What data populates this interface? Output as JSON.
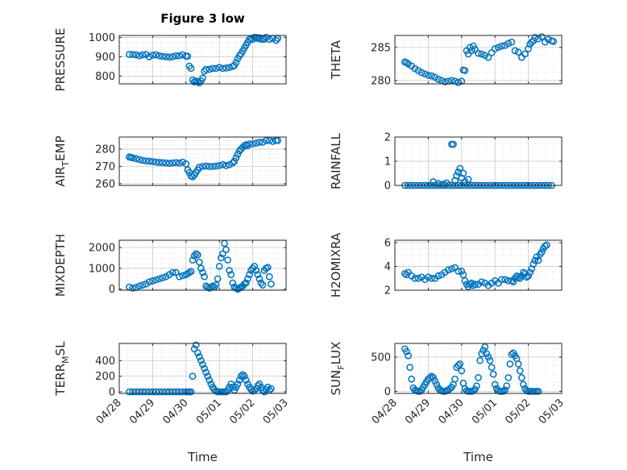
{
  "figure": {
    "title": "Figure 3 low",
    "xlabel_left": "Time",
    "xlabel_right": "Time",
    "x_tick_labels": [
      "04/28",
      "04/29",
      "04/30",
      "05/01",
      "05/02",
      "05/03"
    ]
  },
  "colors": {
    "marker": "#0072BD",
    "grid": "#d8d8d8",
    "axis": "#262626"
  },
  "chart_data": [
    {
      "type": "scatter",
      "name": "pressure",
      "ylabel": "PRESSURE",
      "ylim": [
        760,
        1010
      ],
      "yticks": [
        800,
        900,
        1000
      ],
      "xlim": [
        0,
        5
      ],
      "x_unit": "days from 04/28",
      "x": [
        0.3,
        0.4,
        0.5,
        0.6,
        0.7,
        0.8,
        0.9,
        1.0,
        1.1,
        1.2,
        1.3,
        1.4,
        1.5,
        1.6,
        1.7,
        1.8,
        1.9,
        2.0,
        2.05,
        2.1,
        2.15,
        2.2,
        2.25,
        2.3,
        2.35,
        2.4,
        2.45,
        2.5,
        2.55,
        2.6,
        2.7,
        2.8,
        2.9,
        3.0,
        3.1,
        3.2,
        3.3,
        3.4,
        3.45,
        3.5,
        3.55,
        3.6,
        3.65,
        3.7,
        3.75,
        3.8,
        3.85,
        3.9,
        3.95,
        4.0,
        4.05,
        4.1,
        4.15,
        4.2,
        4.25,
        4.3,
        4.35,
        4.4,
        4.5,
        4.6,
        4.7,
        4.75
      ],
      "y": [
        912,
        912,
        910,
        905,
        910,
        912,
        900,
        908,
        910,
        905,
        902,
        900,
        898,
        900,
        905,
        905,
        910,
        903,
        903,
        852,
        840,
        780,
        770,
        775,
        770,
        765,
        775,
        790,
        825,
        835,
        835,
        840,
        840,
        845,
        840,
        842,
        845,
        850,
        855,
        870,
        890,
        905,
        915,
        930,
        945,
        960,
        975,
        990,
        995,
        990,
        1000,
        1000,
        995,
        998,
        990,
        995,
        990,
        1000,
        990,
        995,
        985,
        995
      ]
    },
    {
      "type": "scatter",
      "name": "theta",
      "ylabel": "THETA",
      "ylim": [
        279.5,
        286.8
      ],
      "yticks": [
        280,
        285
      ],
      "xlim": [
        0,
        5
      ],
      "x_unit": "days from 04/28",
      "x": [
        0.3,
        0.35,
        0.4,
        0.5,
        0.6,
        0.7,
        0.8,
        0.9,
        1.0,
        1.1,
        1.2,
        1.3,
        1.4,
        1.5,
        1.6,
        1.7,
        1.8,
        1.9,
        2.0,
        2.05,
        2.1,
        2.15,
        2.2,
        2.25,
        2.3,
        2.35,
        2.4,
        2.5,
        2.6,
        2.7,
        2.8,
        2.9,
        3.0,
        3.1,
        3.2,
        3.3,
        3.4,
        3.5,
        3.6,
        3.7,
        3.8,
        3.9,
        4.0,
        4.05,
        4.1,
        4.15,
        4.2,
        4.3,
        4.4,
        4.5,
        4.6,
        4.7,
        4.75
      ],
      "y": [
        282.8,
        282.7,
        282.5,
        282.2,
        281.8,
        281.5,
        281.2,
        281.0,
        280.8,
        280.7,
        280.5,
        280.2,
        280.0,
        279.8,
        279.9,
        280.0,
        279.9,
        279.7,
        279.9,
        281.6,
        281.5,
        284.5,
        284.0,
        285.0,
        284.5,
        285.2,
        284.7,
        284.1,
        284.0,
        283.8,
        283.5,
        284.2,
        284.8,
        285.0,
        285.2,
        285.3,
        285.6,
        285.8,
        284.5,
        284.3,
        283.5,
        284.0,
        284.8,
        285.5,
        285.8,
        286.0,
        286.5,
        286.3,
        286.6,
        285.8,
        286.2,
        286.0,
        285.9
      ]
    },
    {
      "type": "scatter",
      "name": "air_temp",
      "ylabel": "AIR",
      "ylabel_sub": "T",
      "ylabel_tail": "EMP",
      "ylim": [
        259,
        287
      ],
      "yticks": [
        260,
        270,
        280
      ],
      "xlim": [
        0,
        5
      ],
      "x_unit": "days from 04/28",
      "x": [
        0.3,
        0.35,
        0.4,
        0.5,
        0.6,
        0.7,
        0.8,
        0.9,
        1.0,
        1.1,
        1.2,
        1.3,
        1.4,
        1.5,
        1.6,
        1.7,
        1.8,
        1.9,
        2.0,
        2.05,
        2.1,
        2.15,
        2.2,
        2.25,
        2.3,
        2.35,
        2.4,
        2.5,
        2.6,
        2.7,
        2.8,
        2.9,
        3.0,
        3.1,
        3.2,
        3.3,
        3.4,
        3.45,
        3.5,
        3.55,
        3.6,
        3.65,
        3.7,
        3.75,
        3.8,
        3.85,
        3.9,
        4.0,
        4.1,
        4.2,
        4.3,
        4.4,
        4.5,
        4.6,
        4.7,
        4.75
      ],
      "y": [
        275.5,
        275.2,
        275,
        274.5,
        274,
        273.5,
        273.2,
        273,
        272.8,
        272.5,
        272.3,
        272.2,
        272,
        271.8,
        272,
        272.2,
        272,
        272.5,
        271.5,
        268,
        266.5,
        264.5,
        264,
        265,
        266.5,
        268,
        269.5,
        270,
        270.2,
        270,
        270,
        270.2,
        270.5,
        271,
        270.5,
        271,
        272,
        273,
        275,
        277,
        279,
        280,
        281,
        282,
        282.5,
        282,
        283,
        283,
        283.5,
        284,
        284,
        285,
        285,
        284.5,
        285,
        285
      ]
    },
    {
      "type": "scatter",
      "name": "rainfall",
      "ylabel": "RAINFALL",
      "ylim": [
        0,
        2
      ],
      "yticks": [
        0,
        1,
        2
      ],
      "xlim": [
        0,
        5
      ],
      "x_unit": "days from 04/28",
      "x": [
        0.3,
        0.4,
        0.5,
        0.6,
        0.7,
        0.8,
        0.9,
        1.0,
        1.1,
        1.2,
        1.3,
        1.4,
        1.5,
        1.6,
        1.7,
        1.8,
        1.9,
        2.0,
        2.1,
        2.2,
        2.3,
        2.4,
        2.5,
        2.6,
        2.7,
        2.8,
        2.9,
        3.0,
        3.1,
        3.2,
        3.3,
        3.4,
        3.5,
        3.6,
        3.7,
        3.8,
        3.9,
        4.0,
        4.1,
        4.2,
        4.3,
        4.4,
        4.5,
        4.6,
        4.7,
        1.15,
        1.3,
        1.45,
        1.55,
        1.7,
        1.75,
        1.8,
        1.85,
        1.9,
        1.95,
        2.0,
        2.05,
        2.1,
        2.2
      ],
      "y": [
        0,
        0,
        0,
        0,
        0,
        0,
        0,
        0,
        0,
        0,
        0,
        0,
        0,
        0,
        0,
        0,
        0,
        0,
        0,
        0,
        0,
        0,
        0,
        0,
        0,
        0,
        0,
        0,
        0,
        0,
        0,
        0,
        0,
        0,
        0,
        0,
        0,
        0,
        0,
        0,
        0,
        0,
        0,
        0,
        0,
        0.15,
        0.08,
        0.05,
        0.1,
        1.7,
        1.7,
        0.2,
        0.4,
        0.55,
        0.7,
        0.3,
        0.5,
        0.15,
        0.25
      ]
    },
    {
      "type": "scatter",
      "name": "mixdepth",
      "ylabel": "MIXDEPTH",
      "ylim": [
        -50,
        2350
      ],
      "yticks": [
        0,
        1000,
        2000
      ],
      "xlim": [
        0,
        5
      ],
      "x_unit": "days from 04/28",
      "x": [
        0.3,
        0.4,
        0.5,
        0.6,
        0.7,
        0.8,
        0.9,
        1.0,
        1.1,
        1.2,
        1.3,
        1.4,
        1.5,
        1.6,
        1.7,
        1.8,
        1.9,
        2.0,
        2.05,
        2.1,
        2.15,
        2.2,
        2.25,
        2.3,
        2.35,
        2.4,
        2.45,
        2.5,
        2.55,
        2.6,
        2.65,
        2.7,
        2.75,
        2.8,
        2.85,
        2.9,
        2.95,
        3.0,
        3.05,
        3.1,
        3.15,
        3.2,
        3.25,
        3.3,
        3.35,
        3.4,
        3.45,
        3.5,
        3.55,
        3.6,
        3.65,
        3.7,
        3.75,
        3.8,
        3.85,
        3.9,
        3.95,
        4.0,
        4.05,
        4.1,
        4.15,
        4.2,
        4.25,
        4.3,
        4.35,
        4.4,
        4.45,
        4.5,
        4.55
      ],
      "y": [
        100,
        50,
        80,
        150,
        200,
        250,
        350,
        400,
        450,
        500,
        550,
        600,
        700,
        800,
        800,
        600,
        650,
        700,
        750,
        800,
        850,
        1400,
        1600,
        1700,
        1650,
        1300,
        1000,
        800,
        600,
        150,
        100,
        50,
        100,
        150,
        100,
        200,
        500,
        1100,
        1500,
        1700,
        2200,
        1900,
        1400,
        900,
        700,
        300,
        100,
        50,
        0,
        50,
        100,
        150,
        250,
        300,
        500,
        700,
        900,
        1000,
        1100,
        900,
        700,
        500,
        300,
        200,
        900,
        1000,
        1050,
        600,
        250
      ]
    },
    {
      "type": "scatter",
      "name": "h2o_mixing_ratio",
      "ylabel": "H2OMIXRA",
      "ylim": [
        2,
        6.2
      ],
      "yticks": [
        2,
        4,
        6
      ],
      "xlim": [
        0,
        5
      ],
      "x_unit": "days from 04/28",
      "x": [
        0.3,
        0.35,
        0.4,
        0.5,
        0.6,
        0.7,
        0.8,
        0.9,
        1.0,
        1.1,
        1.2,
        1.3,
        1.4,
        1.5,
        1.6,
        1.7,
        1.8,
        1.9,
        2.0,
        2.05,
        2.1,
        2.15,
        2.2,
        2.25,
        2.3,
        2.35,
        2.4,
        2.5,
        2.6,
        2.7,
        2.8,
        2.9,
        3.0,
        3.1,
        3.2,
        3.3,
        3.4,
        3.5,
        3.55,
        3.6,
        3.65,
        3.7,
        3.75,
        3.8,
        3.85,
        3.9,
        3.95,
        4.0,
        4.05,
        4.1,
        4.15,
        4.2,
        4.25,
        4.3,
        4.35,
        4.4,
        4.45,
        4.5,
        4.55
      ],
      "y": [
        3.4,
        3.3,
        3.5,
        3.2,
        3.0,
        3.0,
        3.1,
        2.9,
        3.1,
        3.0,
        3.0,
        3.2,
        3.3,
        3.5,
        3.7,
        3.8,
        3.9,
        3.6,
        3.6,
        3.3,
        2.8,
        2.5,
        2.3,
        2.5,
        2.6,
        2.4,
        2.5,
        2.5,
        2.7,
        2.6,
        2.4,
        2.6,
        2.8,
        2.6,
        2.9,
        2.9,
        2.8,
        2.8,
        2.7,
        3.0,
        3.2,
        3.1,
        3.0,
        3.2,
        3.5,
        3.4,
        3.1,
        3.2,
        3.5,
        3.8,
        4.2,
        4.5,
        4.8,
        4.5,
        5.0,
        5.2,
        5.5,
        5.7,
        5.8
      ]
    },
    {
      "type": "scatter",
      "name": "terr_msl",
      "ylabel": "TERR",
      "ylabel_sub": "M",
      "ylabel_tail": "SL",
      "ylim": [
        -20,
        620
      ],
      "yticks": [
        0,
        200,
        400
      ],
      "xlim": [
        0,
        5
      ],
      "x_unit": "days from 04/28",
      "x": [
        0.3,
        0.4,
        0.5,
        0.6,
        0.7,
        0.8,
        0.9,
        1.0,
        1.1,
        1.2,
        1.3,
        1.4,
        1.5,
        1.6,
        1.7,
        1.8,
        1.9,
        2.0,
        2.05,
        2.1,
        2.15,
        2.2,
        2.25,
        2.3,
        2.35,
        2.4,
        2.45,
        2.5,
        2.55,
        2.6,
        2.65,
        2.7,
        2.75,
        2.8,
        2.85,
        2.9,
        2.95,
        3.0,
        3.05,
        3.1,
        3.15,
        3.2,
        3.25,
        3.3,
        3.35,
        3.4,
        3.45,
        3.5,
        3.55,
        3.6,
        3.65,
        3.7,
        3.75,
        3.8,
        3.85,
        3.9,
        3.95,
        4.0,
        4.05,
        4.1,
        4.15,
        4.2,
        4.25,
        4.3,
        4.35,
        4.4,
        4.45,
        4.5,
        4.55
      ],
      "y": [
        0,
        0,
        0,
        0,
        0,
        0,
        0,
        0,
        0,
        0,
        0,
        0,
        0,
        0,
        0,
        0,
        0,
        0,
        0,
        0,
        0,
        200,
        550,
        600,
        500,
        450,
        400,
        350,
        300,
        250,
        200,
        150,
        100,
        60,
        30,
        10,
        0,
        0,
        0,
        0,
        0,
        0,
        20,
        60,
        100,
        60,
        20,
        60,
        100,
        150,
        200,
        220,
        200,
        150,
        100,
        60,
        30,
        10,
        20,
        40,
        80,
        100,
        60,
        20,
        0,
        30,
        60,
        20,
        40
      ]
    },
    {
      "type": "scatter",
      "name": "sun_flux",
      "ylabel": "SUN",
      "ylabel_sub": "F",
      "ylabel_tail": "LUX",
      "ylim": [
        -30,
        700
      ],
      "yticks": [
        0,
        500
      ],
      "xlim": [
        0,
        5
      ],
      "x_unit": "days from 04/28",
      "x": [
        0.3,
        0.35,
        0.4,
        0.45,
        0.5,
        0.55,
        0.6,
        0.65,
        0.7,
        0.75,
        0.8,
        0.85,
        0.9,
        0.95,
        1.0,
        1.05,
        1.1,
        1.15,
        1.2,
        1.25,
        1.3,
        1.35,
        1.4,
        1.45,
        1.5,
        1.55,
        1.6,
        1.65,
        1.7,
        1.75,
        1.8,
        1.85,
        1.9,
        1.95,
        2.0,
        2.05,
        2.1,
        2.15,
        2.2,
        2.25,
        2.3,
        2.35,
        2.4,
        2.45,
        2.5,
        2.55,
        2.6,
        2.65,
        2.7,
        2.75,
        2.8,
        2.85,
        2.9,
        2.95,
        3.0,
        3.05,
        3.1,
        3.15,
        3.2,
        3.25,
        3.3,
        3.35,
        3.4,
        3.45,
        3.5,
        3.55,
        3.6,
        3.65,
        3.7,
        3.75,
        3.8,
        3.85,
        3.9,
        3.95,
        4.0,
        4.05,
        4.1,
        4.15,
        4.2,
        4.25,
        4.3
      ],
      "y": [
        620,
        580,
        520,
        350,
        180,
        50,
        20,
        10,
        0,
        0,
        20,
        60,
        100,
        140,
        180,
        200,
        220,
        200,
        150,
        100,
        50,
        20,
        10,
        0,
        0,
        10,
        20,
        40,
        60,
        100,
        180,
        350,
        380,
        400,
        300,
        120,
        40,
        10,
        0,
        0,
        0,
        10,
        30,
        80,
        200,
        450,
        550,
        600,
        650,
        550,
        500,
        450,
        350,
        250,
        100,
        40,
        10,
        0,
        0,
        0,
        20,
        80,
        200,
        400,
        540,
        560,
        520,
        480,
        400,
        300,
        200,
        100,
        40,
        10,
        0,
        0,
        0,
        0,
        0,
        0,
        0
      ]
    }
  ]
}
